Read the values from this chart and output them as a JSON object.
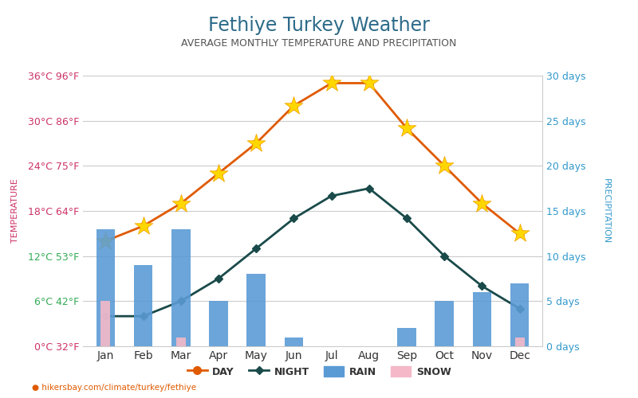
{
  "title": "Fethiye Turkey Weather",
  "subtitle": "AVERAGE MONTHLY TEMPERATURE AND PRECIPITATION",
  "months": [
    "Jan",
    "Feb",
    "Mar",
    "Apr",
    "May",
    "Jun",
    "Jul",
    "Aug",
    "Sep",
    "Oct",
    "Nov",
    "Dec"
  ],
  "day_temp": [
    14,
    16,
    19,
    23,
    27,
    32,
    35,
    35,
    29,
    24,
    19,
    15
  ],
  "night_temp": [
    4,
    4,
    6,
    9,
    13,
    17,
    20,
    21,
    17,
    12,
    8,
    5
  ],
  "rain_days": [
    13,
    9,
    13,
    5,
    8,
    1,
    0,
    0,
    2,
    5,
    6,
    7
  ],
  "snow_days": [
    5,
    0,
    1,
    0,
    0,
    0,
    0,
    0,
    0,
    0,
    0,
    1
  ],
  "temp_yticks_c": [
    0,
    6,
    12,
    18,
    24,
    30,
    36
  ],
  "temp_yticks_f": [
    32,
    42,
    53,
    64,
    75,
    86,
    96
  ],
  "precip_yticks": [
    0,
    5,
    10,
    15,
    20,
    25,
    30
  ],
  "title_fontsize": 17,
  "subtitle_fontsize": 9,
  "bg_color": "#ffffff",
  "grid_color": "#cccccc",
  "day_color": "#e05a00",
  "night_color": "#1a4a4a",
  "rain_color": "#5b9bd5",
  "snow_color": "#f4b8c8",
  "left_label_colors": [
    "#cc3366",
    "#33aa55",
    "#33aa55",
    "#cc3366",
    "#cc3366",
    "#cc3366",
    "#cc3366"
  ],
  "right_precip_color": "#3399cc",
  "watermark": "hikersbay.com/climate/turkey/fethiye",
  "legend_day": "DAY",
  "legend_night": "NIGHT",
  "legend_rain": "RAIN",
  "legend_snow": "SNOW",
  "ylabel_left": "TEMPERATURE",
  "ylabel_right": "PRECIPITATION",
  "bar_width": 0.5
}
